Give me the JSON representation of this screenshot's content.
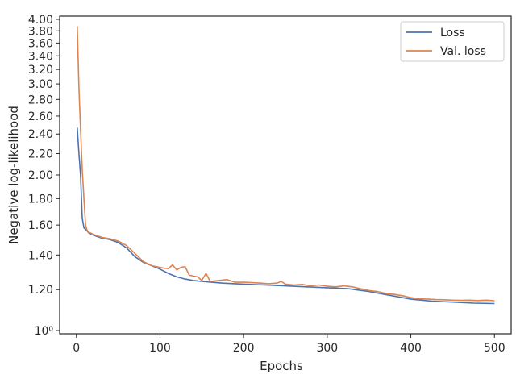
{
  "chart_data": {
    "type": "line",
    "xlabel": "Epochs",
    "ylabel": "Negative log-likelihood",
    "xlim": [
      -20,
      520
    ],
    "ylim": [
      1.0,
      4.0
    ],
    "yscale": "log",
    "grid": false,
    "legend_position": "top-right",
    "x_ticks": [
      {
        "value": 0,
        "label": "0"
      },
      {
        "value": 100,
        "label": "100"
      },
      {
        "value": 200,
        "label": "200"
      },
      {
        "value": 300,
        "label": "300"
      },
      {
        "value": 400,
        "label": "400"
      },
      {
        "value": 500,
        "label": "500"
      }
    ],
    "y_ticks": [
      {
        "value": 1.0,
        "label": "10⁰"
      },
      {
        "value": 1.2,
        "label": "1.20"
      },
      {
        "value": 1.4,
        "label": "1.40"
      },
      {
        "value": 1.6,
        "label": "1.60"
      },
      {
        "value": 1.8,
        "label": "1.80"
      },
      {
        "value": 2.0,
        "label": "2.00"
      },
      {
        "value": 2.2,
        "label": "2.20"
      },
      {
        "value": 2.4,
        "label": "2.40"
      },
      {
        "value": 2.6,
        "label": "2.60"
      },
      {
        "value": 2.8,
        "label": "2.80"
      },
      {
        "value": 3.0,
        "label": "3.00"
      },
      {
        "value": 3.2,
        "label": "3.20"
      },
      {
        "value": 3.4,
        "label": "3.40"
      },
      {
        "value": 3.6,
        "label": "3.60"
      },
      {
        "value": 3.8,
        "label": "3.80"
      },
      {
        "value": 4.0,
        "label": "4.00"
      }
    ],
    "series": [
      {
        "name": "Loss",
        "color": "#4c72b0",
        "x": [
          1,
          3,
          5,
          7,
          9,
          11,
          15,
          20,
          30,
          40,
          50,
          60,
          70,
          80,
          90,
          100,
          110,
          120,
          130,
          140,
          150,
          175,
          200,
          225,
          250,
          275,
          300,
          325,
          350,
          375,
          400,
          425,
          450,
          475,
          500
        ],
        "y": [
          2.47,
          2.2,
          2.0,
          1.65,
          1.58,
          1.57,
          1.545,
          1.53,
          1.51,
          1.5,
          1.48,
          1.445,
          1.39,
          1.355,
          1.335,
          1.315,
          1.29,
          1.27,
          1.258,
          1.25,
          1.245,
          1.235,
          1.23,
          1.225,
          1.22,
          1.215,
          1.21,
          1.205,
          1.19,
          1.17,
          1.15,
          1.14,
          1.135,
          1.13,
          1.128
        ]
      },
      {
        "name": "Val. loss",
        "color": "#dd8452",
        "x": [
          1,
          3,
          5,
          7,
          9,
          11,
          13,
          15,
          20,
          30,
          40,
          50,
          60,
          70,
          80,
          90,
          100,
          105,
          110,
          115,
          120,
          125,
          130,
          135,
          140,
          145,
          150,
          155,
          160,
          170,
          180,
          190,
          200,
          210,
          220,
          230,
          240,
          245,
          250,
          260,
          270,
          280,
          290,
          300,
          310,
          320,
          330,
          340,
          350,
          360,
          370,
          380,
          390,
          400,
          410,
          420,
          430,
          440,
          450,
          460,
          470,
          480,
          490,
          500
        ],
        "y": [
          3.88,
          2.95,
          2.45,
          2.05,
          1.8,
          1.6,
          1.56,
          1.55,
          1.535,
          1.515,
          1.505,
          1.49,
          1.46,
          1.41,
          1.36,
          1.335,
          1.325,
          1.32,
          1.318,
          1.34,
          1.31,
          1.325,
          1.33,
          1.28,
          1.275,
          1.27,
          1.25,
          1.29,
          1.245,
          1.25,
          1.255,
          1.24,
          1.24,
          1.238,
          1.235,
          1.232,
          1.235,
          1.245,
          1.23,
          1.225,
          1.228,
          1.22,
          1.225,
          1.218,
          1.215,
          1.22,
          1.215,
          1.205,
          1.195,
          1.19,
          1.18,
          1.175,
          1.168,
          1.158,
          1.152,
          1.15,
          1.148,
          1.147,
          1.145,
          1.144,
          1.145,
          1.143,
          1.145,
          1.142
        ]
      }
    ]
  }
}
